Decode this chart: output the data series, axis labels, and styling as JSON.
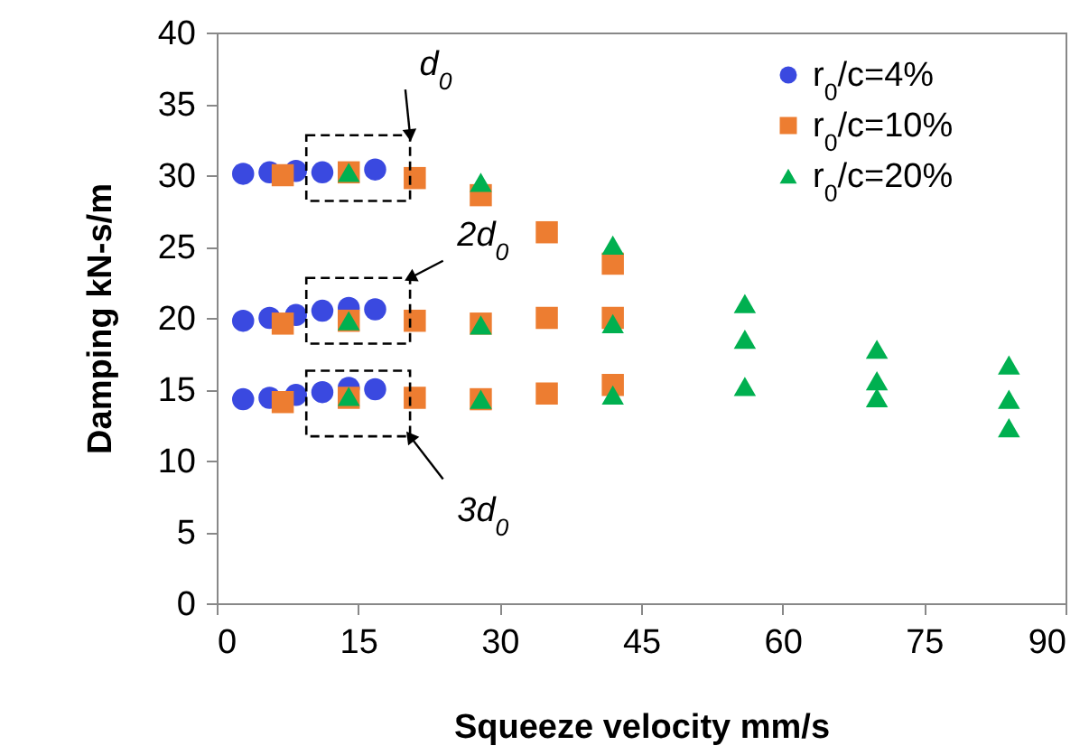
{
  "chart_data": {
    "type": "scatter",
    "xlabel": "Squeeze velocity mm/s",
    "ylabel": "Damping kN-s/m",
    "xlim": [
      0,
      90
    ],
    "xticks": [
      0,
      15,
      30,
      45,
      60,
      75,
      90
    ],
    "ylim": [
      0,
      40
    ],
    "yticks": [
      0,
      5,
      10,
      15,
      20,
      25,
      30,
      35,
      40
    ],
    "grid": false,
    "legend": "top right",
    "series": [
      {
        "name": "r$_{0}$/c=4%",
        "color": "#3a49e0",
        "marker": "circle",
        "x": [
          2.8,
          5.6,
          8.4,
          11.2,
          null,
          16.8,
          2.8,
          5.6,
          8.4,
          11.2,
          14,
          16.8,
          2.8,
          5.6,
          8.4,
          11.2,
          14,
          16.8
        ],
        "values": [
          30.1,
          30.2,
          30.3,
          30.2,
          null,
          30.4,
          19.8,
          20,
          20.2,
          20.5,
          20.7,
          20.6,
          14.3,
          14.4,
          14.6,
          14.8,
          15.1,
          15
        ]
      },
      {
        "name": "r$_{0}$/c=10%",
        "color": "#ed7d31",
        "marker": "square",
        "x": [
          7,
          14,
          21,
          28,
          35,
          42,
          7,
          14,
          21,
          28,
          35,
          42,
          7,
          14,
          21,
          28,
          35,
          42
        ],
        "values": [
          30,
          30.2,
          29.8,
          28.6,
          26,
          23.8,
          19.6,
          19.8,
          19.8,
          19.6,
          20,
          20,
          14.1,
          14.4,
          14.4,
          14.3,
          14.7,
          15.3
        ]
      },
      {
        "name": "r$_{0}$/c=20%",
        "color": "#00b050",
        "marker": "triangle",
        "x": [
          14,
          28,
          42,
          56,
          70,
          84,
          14,
          28,
          42,
          56,
          70,
          84,
          14,
          28,
          42,
          56,
          70,
          84
        ],
        "values": [
          30.2,
          29.5,
          25.1,
          21,
          17.8,
          16.7,
          19.8,
          19.5,
          19.6,
          18.5,
          15.6,
          14.3,
          14.5,
          14.3,
          14.6,
          15.2,
          14.4,
          12.3
        ]
      }
    ],
    "annotations": [
      "d$_{0}$",
      "2d$_{0}$",
      "3d$_{0}$"
    ]
  }
}
